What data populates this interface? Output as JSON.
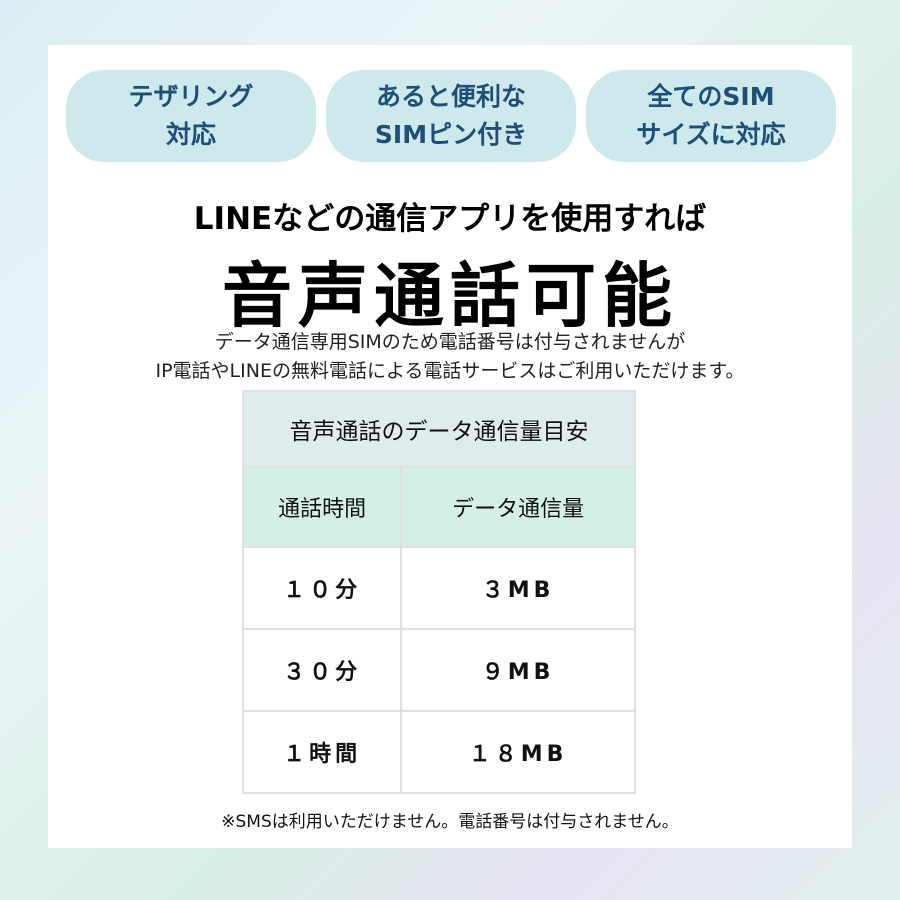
{
  "features": [
    {
      "line1": "テザリング",
      "line2": "対応"
    },
    {
      "line1": "あると便利な",
      "line2": "SIMピン付き"
    },
    {
      "line1": "全てのSIM",
      "line2": "サイズに対応"
    }
  ],
  "headline": {
    "sub": "LINEなどの通信アプリを使用すれば",
    "main": "音声通話可能"
  },
  "notes": [
    "データ通信専用SIMのため電話番号は付与されませんが",
    "IP電話やLINEの無料電話による電話サービスはご利用いただけます。"
  ],
  "table": {
    "caption": "音声通話のデータ通信量目安",
    "headers": [
      "通話時間",
      "データ通信量"
    ],
    "rows": [
      [
        "１０分",
        "３MB"
      ],
      [
        "３０分",
        "９MB"
      ],
      [
        "１時間",
        "１８MB"
      ]
    ]
  },
  "footnote": "※SMSは利用いただけません。電話番号は付与されません。",
  "colors": {
    "pill": "#cde9ec",
    "pill_text": "#1d4f78",
    "table_caption_bg": "#deecee",
    "table_header_bg": "#d4f0e4"
  }
}
